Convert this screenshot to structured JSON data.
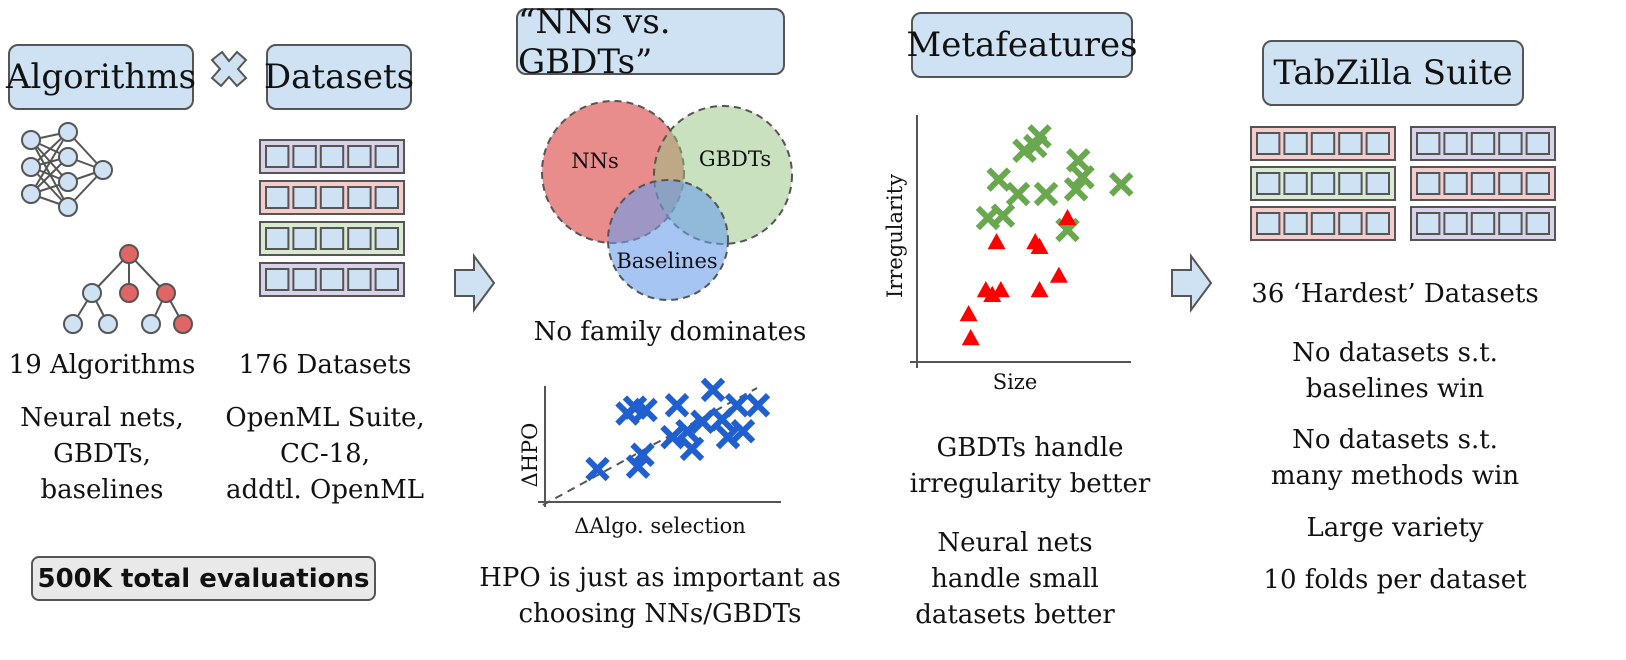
{
  "columns": {
    "inputs": {
      "algorithms_label": "Algorithms",
      "times_icon": "times-icon",
      "datasets_label": "Datasets",
      "algorithms_count": "19 Algorithms",
      "algorithms_desc": [
        "Neural nets,",
        "GBDTs,",
        "baselines"
      ],
      "datasets_count": "176 Datasets",
      "datasets_desc": [
        "OpenML Suite,",
        "CC-18,",
        "addtl. OpenML"
      ],
      "total": "500K total evaluations"
    },
    "nns_vs_gbdts": {
      "title": "“NNs vs. GBDTs”",
      "venn": {
        "a": "NNs",
        "b": "GBDTs",
        "c": "Baselines"
      },
      "venn_colors": {
        "a": "#e06666",
        "b": "#93c47d",
        "c": "#6d9eeb"
      },
      "venn_caption": "No family dominates",
      "scatter_ylabel": "ΔHPO",
      "scatter_xlabel": "ΔAlgo. selection",
      "scatter_caption": [
        "HPO is just as important as",
        "choosing NNs/GBDTs"
      ]
    },
    "metafeatures": {
      "title": "Metafeatures",
      "ylabel": "Irregularity",
      "xlabel": "Size",
      "caption1": [
        "GBDTs handle",
        "irregularity better"
      ],
      "caption2": [
        "Neural nets",
        "handle small",
        "datasets better"
      ]
    },
    "suite": {
      "title": "TabZilla Suite",
      "hardest": "36 ‘Hardest’ Datasets",
      "bullets": [
        [
          "No datasets s.t.",
          "baselines win"
        ],
        [
          "No datasets s.t.",
          "many methods win"
        ],
        [
          "Large variety"
        ],
        [
          "10 folds per dataset"
        ]
      ]
    }
  },
  "colors": {
    "tag_fill": "#cfe2f3",
    "purple_row": "#d9d2e9",
    "red_row": "#f4cccc",
    "green_row": "#d9ead3",
    "green_mark": "#6aa84f",
    "red_mark": "#ff0000",
    "blue_mark": "#1f5fcf"
  },
  "chart_data": [
    {
      "type": "scatter",
      "title": "",
      "xlabel": "ΔAlgo. selection",
      "ylabel": "ΔHPO",
      "series": [
        {
          "marker": "x",
          "color": "#1f5fcf",
          "x": [
            0.35,
            0.55,
            0.6,
            0.62,
            0.65,
            0.67,
            0.85,
            0.88,
            0.95,
            0.98,
            1.05,
            1.12,
            1.18,
            1.22,
            1.28,
            1.32,
            1.42
          ],
          "y": [
            0.28,
            0.75,
            0.8,
            0.3,
            0.4,
            0.78,
            0.55,
            0.82,
            0.6,
            0.45,
            0.68,
            0.95,
            0.7,
            0.55,
            0.82,
            0.6,
            0.82
          ]
        }
      ],
      "trend_line": "dashed"
    },
    {
      "type": "scatter",
      "title": "",
      "xlabel": "Size",
      "ylabel": "Irregularity",
      "series": [
        {
          "marker": "x",
          "color": "#6aa84f",
          "x": [
            0.33,
            0.38,
            0.4,
            0.47,
            0.5,
            0.55,
            0.57,
            0.6,
            0.7,
            0.74,
            0.75,
            0.77,
            0.95
          ],
          "y": [
            0.6,
            0.76,
            0.61,
            0.7,
            0.88,
            0.9,
            0.94,
            0.7,
            0.55,
            0.72,
            0.84,
            0.77,
            0.74
          ]
        },
        {
          "marker": "triangle",
          "color": "#ff0000",
          "x": [
            0.24,
            0.25,
            0.32,
            0.35,
            0.37,
            0.39,
            0.55,
            0.57,
            0.57,
            0.66,
            0.7
          ],
          "y": [
            0.2,
            0.1,
            0.3,
            0.28,
            0.5,
            0.3,
            0.5,
            0.3,
            0.48,
            0.36,
            0.6
          ]
        }
      ]
    }
  ]
}
